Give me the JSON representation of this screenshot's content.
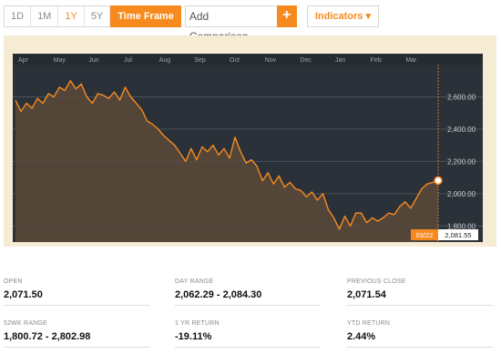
{
  "toolbar": {
    "periods": [
      "1D",
      "1M",
      "1Y",
      "5Y"
    ],
    "active_period": "1Y",
    "time_frame_label": "Time Frame",
    "compare_placeholder": "Add Comparison",
    "add_symbol": "+",
    "indicators_label": "Indicators ▾"
  },
  "colors": {
    "accent": "#f68a1f",
    "plot_bg": "#2b3138",
    "frame_bg": "#f6ecd4",
    "area_fill": "#5a4a3a"
  },
  "chart_data": {
    "type": "area",
    "months": [
      "Apr",
      "May",
      "Jun",
      "Jul",
      "Aug",
      "Sep",
      "Oct",
      "Nov",
      "Dec",
      "Jan",
      "Feb",
      "Mar"
    ],
    "y_ticks": [
      "1,800.00",
      "2,000.00",
      "2,200.00",
      "2,400.00",
      "2,600.00"
    ],
    "ylim": [
      1700,
      2800
    ],
    "grid": true,
    "cursor": {
      "date_label": "03/22",
      "value_label": "2,081.55",
      "value": 2081.55
    },
    "series": [
      {
        "values": [
          2580,
          2510,
          2560,
          2530,
          2590,
          2560,
          2620,
          2600,
          2660,
          2640,
          2700,
          2650,
          2680,
          2600,
          2560,
          2620,
          2610,
          2590,
          2630,
          2580,
          2660,
          2600,
          2560,
          2520,
          2450,
          2430,
          2400,
          2360,
          2330,
          2300,
          2250,
          2200,
          2280,
          2210,
          2290,
          2260,
          2300,
          2240,
          2280,
          2220,
          2350,
          2260,
          2190,
          2210,
          2170,
          2080,
          2130,
          2060,
          2110,
          2040,
          2070,
          2030,
          2020,
          1980,
          2010,
          1960,
          2000,
          1900,
          1850,
          1780,
          1860,
          1800,
          1880,
          1880,
          1820,
          1850,
          1830,
          1850,
          1880,
          1870,
          1920,
          1950,
          1910,
          1970,
          2030,
          2060,
          2070,
          2081.55
        ]
      }
    ]
  },
  "stats": [
    {
      "label": "OPEN",
      "value": "2,071.50"
    },
    {
      "label": "DAY RANGE",
      "value": "2,062.29 - 2,084.30"
    },
    {
      "label": "PREVIOUS CLOSE",
      "value": "2,071.54"
    },
    {
      "label": "52WK RANGE",
      "value": "1,800.72 - 2,802.98"
    },
    {
      "label": "1 YR RETURN",
      "value": "-19.11%"
    },
    {
      "label": "YTD RETURN",
      "value": "2.44%"
    }
  ]
}
